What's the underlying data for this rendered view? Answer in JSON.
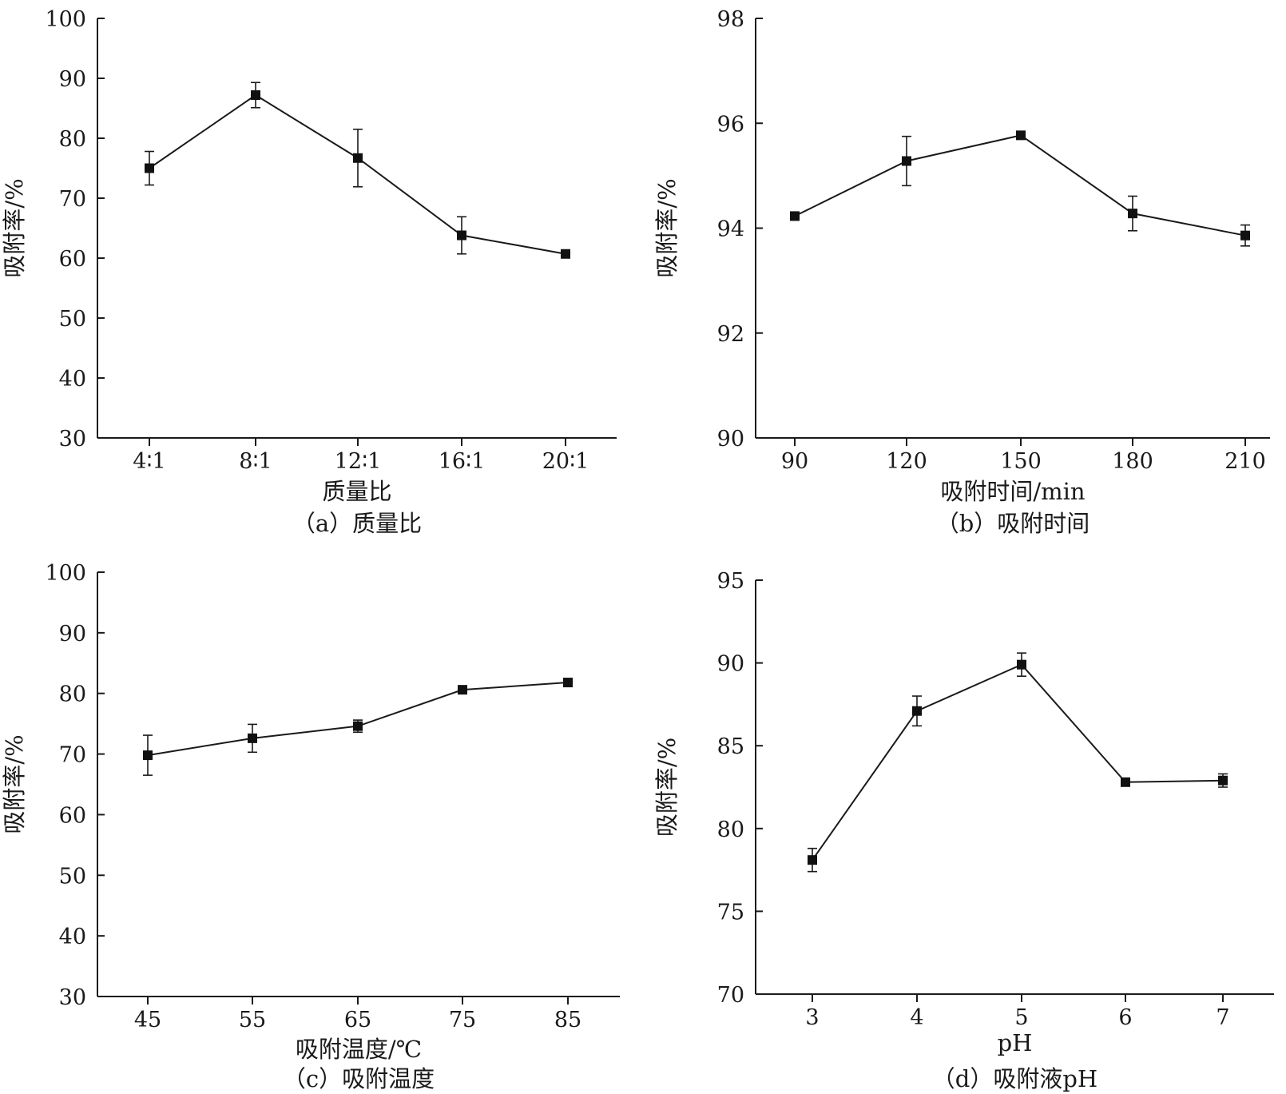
{
  "chart_data": [
    {
      "id": "a",
      "type": "line",
      "caption": "（a）质量比",
      "xlabel": "质量比",
      "ylabel": "吸附率/%",
      "categories": [
        "4∶1",
        "8∶1",
        "12∶1",
        "16∶1",
        "20∶1"
      ],
      "values": [
        75.0,
        87.2,
        76.7,
        63.8,
        60.7
      ],
      "errors": [
        2.8,
        2.1,
        4.8,
        3.1,
        0.3
      ],
      "ylim": [
        30,
        100
      ],
      "yticks": [
        30,
        40,
        50,
        60,
        70,
        80,
        90,
        100
      ],
      "grid": false
    },
    {
      "id": "b",
      "type": "line",
      "caption": "（b）吸附时间",
      "xlabel": "吸附时间/min",
      "ylabel": "吸附率/%",
      "categories": [
        "90",
        "120",
        "150",
        "180",
        "210"
      ],
      "values": [
        94.23,
        95.28,
        95.77,
        94.28,
        93.86
      ],
      "errors": [
        0.07,
        0.47,
        0.04,
        0.33,
        0.2
      ],
      "ylim": [
        90,
        98
      ],
      "yticks": [
        90,
        92,
        94,
        96,
        98
      ],
      "grid": false
    },
    {
      "id": "c",
      "type": "line",
      "caption": "（c）吸附温度",
      "xlabel": "吸附温度/℃",
      "ylabel": "吸附率/%",
      "categories": [
        "45",
        "55",
        "65",
        "75",
        "85"
      ],
      "values": [
        69.8,
        72.6,
        74.6,
        80.6,
        81.8
      ],
      "errors": [
        3.3,
        2.3,
        1.0,
        0.3,
        0.5
      ],
      "ylim": [
        30,
        100
      ],
      "yticks": [
        30,
        40,
        50,
        60,
        70,
        80,
        90,
        100
      ],
      "grid": false
    },
    {
      "id": "d",
      "type": "line",
      "caption": "（d）吸附液pH",
      "xlabel": "pH",
      "ylabel": "吸附率/%",
      "categories": [
        "3",
        "4",
        "5",
        "6",
        "7"
      ],
      "values": [
        78.1,
        87.1,
        89.9,
        82.8,
        82.9
      ],
      "errors": [
        0.7,
        0.9,
        0.7,
        0.1,
        0.4
      ],
      "ylim": [
        70,
        95
      ],
      "yticks": [
        70,
        75,
        80,
        85,
        90,
        95
      ],
      "grid": false
    }
  ]
}
